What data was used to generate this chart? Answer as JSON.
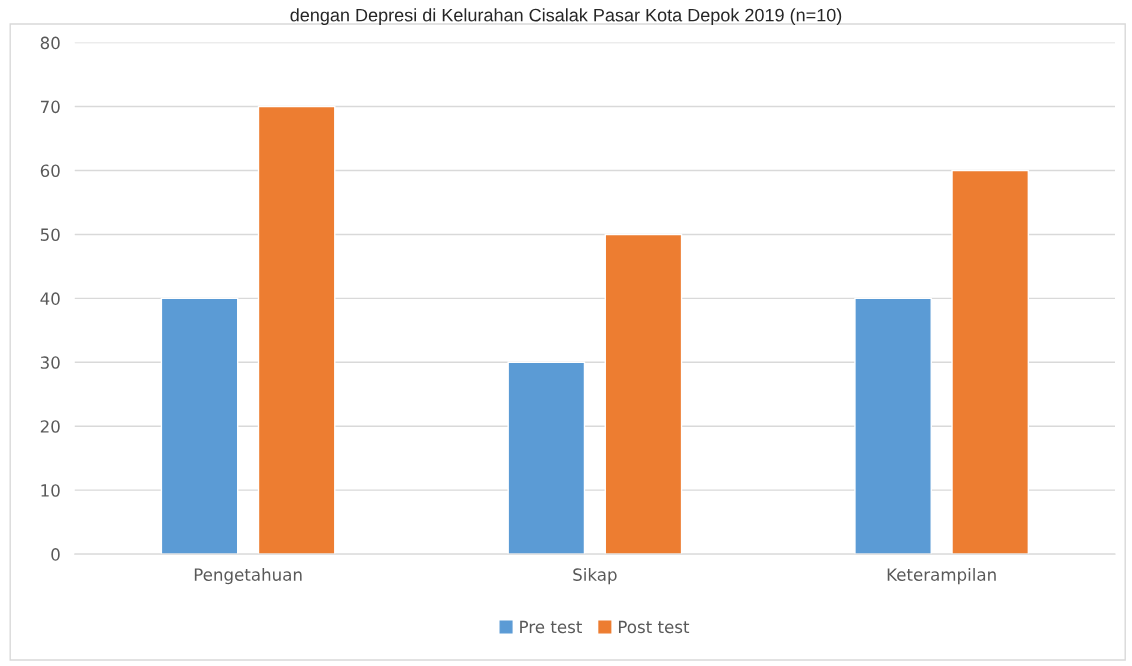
{
  "chart_data": {
    "type": "bar",
    "title": "dengan Depresi di Kelurahan Cisalak Pasar Kota Depok 2019 (n=10)",
    "categories": [
      "Pengetahuan",
      "Sikap",
      "Keterampilan"
    ],
    "series": [
      {
        "name": "Pre test",
        "color": "#5b9bd5",
        "values": [
          40,
          30,
          40
        ]
      },
      {
        "name": "Post test",
        "color": "#ed7d31",
        "values": [
          70,
          50,
          60
        ]
      }
    ],
    "ylim": [
      0,
      80
    ],
    "yticks": [
      0,
      10,
      20,
      30,
      40,
      50,
      60,
      70,
      80
    ],
    "grid": "y",
    "legend": "bottom"
  }
}
